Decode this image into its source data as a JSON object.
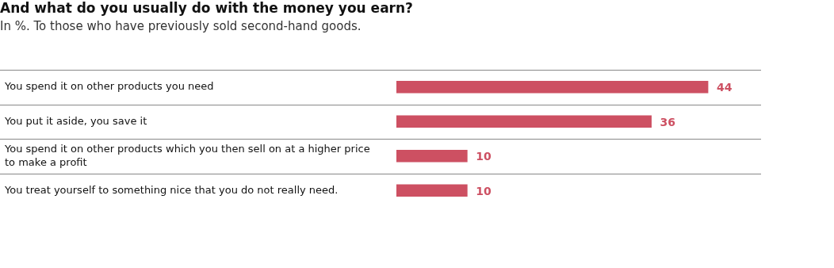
{
  "chart_data": {
    "type": "bar",
    "orientation": "horizontal",
    "title": "And what do you usually do with the money you earn?",
    "subtitle": "In %. To those who have previously sold second-hand goods.",
    "categories": [
      "You spend it on other products you need",
      "You put it aside, you save it",
      "You spend it on other products which you then sell on at a higher price to make a profit",
      "You treat yourself to something nice that you do not really need."
    ],
    "values": [
      44,
      36,
      10,
      10
    ],
    "color": "#cd5062",
    "data_labels": true,
    "tick_labels": false,
    "grid": "y",
    "legend": false
  }
}
